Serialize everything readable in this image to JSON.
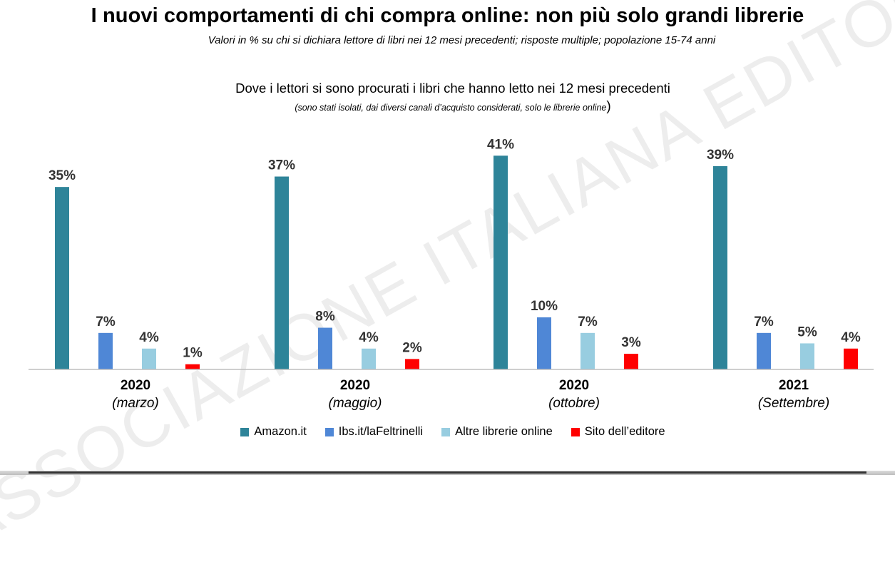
{
  "header": {
    "title": "I nuovi comportamenti di chi compra online: non più solo grandi librerie",
    "subtitle": "Valori in % su chi si dichiara lettore di libri nei 12 mesi precedenti; risposte multiple; popolazione 15-74 anni"
  },
  "watermark": "ASSOCIAZIONE ITALIANA EDITORI",
  "chart_data": {
    "type": "bar",
    "title": "Dove i lettori si sono procurati i libri che hanno letto nei 12 mesi precedenti",
    "subtitle": "(sono stati isolati, dai diversi canali d’acquisto considerati, solo le librerie online",
    "subtitle_close": ")",
    "categories": [
      {
        "year": "2020",
        "month": "(marzo)"
      },
      {
        "year": "2020",
        "month": "(maggio)"
      },
      {
        "year": "2020",
        "month": "(ottobre)"
      },
      {
        "year": "2021",
        "month": "(Settembre)"
      }
    ],
    "series": [
      {
        "name": "Amazon.it",
        "color": "#2e8499",
        "values": [
          35,
          37,
          41,
          39
        ]
      },
      {
        "name": "Ibs.it/laFeltrinelli",
        "color": "#4f87d6",
        "values": [
          7,
          8,
          10,
          7
        ]
      },
      {
        "name": "Altre librerie online",
        "color": "#98cde0",
        "values": [
          4,
          4,
          7,
          5
        ]
      },
      {
        "name": "Sito dell’editore",
        "color": "#ff0000",
        "values": [
          1,
          2,
          3,
          4
        ]
      }
    ],
    "value_suffix": "%",
    "ylim": [
      0,
      45
    ],
    "xlabel": "",
    "ylabel": "",
    "grid": false,
    "legend_position": "bottom"
  }
}
